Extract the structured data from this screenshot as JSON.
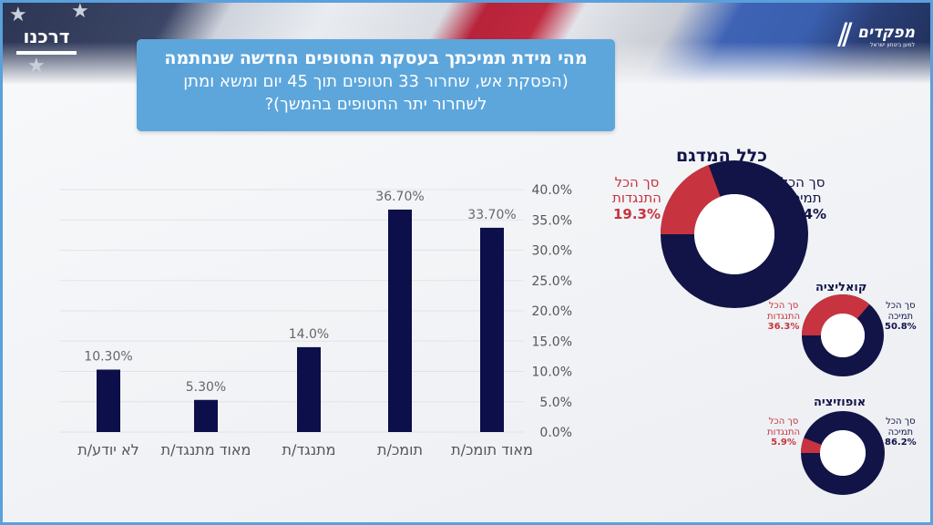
{
  "header": {
    "left_logo": "דרכנו",
    "right_logo": {
      "name": "מפקדים",
      "subtitle": "למען ביטחון ישראל"
    },
    "title_line1": "מהי מידת תמיכתך בעסקת החטופים החדשה שנחתמה",
    "title_line2": "(הפסקת אש, שחרור 33 חטופים תוך 45 יום ומשא ומתן",
    "title_line3": "לשחרור יתר החטופים בהמשך)?"
  },
  "colors": {
    "bar": "#0d0f4a",
    "support": "#121447",
    "oppose": "#c7343f",
    "title_box": "#5da6dc"
  },
  "chart_data": [
    {
      "type": "bar",
      "categories": [
        "מאוד תומכ/ת",
        "תומכ/ת",
        "מתנגד/ת",
        "מאוד מתנגד/ת",
        "לא יודע/ת"
      ],
      "values": [
        33.7,
        36.7,
        14.0,
        5.3,
        10.3
      ],
      "data_labels": [
        "33.70%",
        "36.70%",
        "14.0%",
        "5.30%",
        "10.30%"
      ],
      "y_ticks": [
        "0.0%",
        "5.0%",
        "10.0%",
        "15.0%",
        "20.0%",
        "25.0%",
        "30.0%",
        "35.0%",
        "40.0%"
      ],
      "ylim": [
        0,
        40
      ],
      "y_axis_side": "right",
      "grid": true
    },
    {
      "type": "pie",
      "title": "כלל המדגם",
      "slices": [
        {
          "label": "סך הכל תמיכה",
          "value": 70.4,
          "text": "70.4%"
        },
        {
          "label": "סך הכל התנגדות",
          "value": 19.3,
          "text": "19.3%"
        }
      ]
    },
    {
      "type": "pie",
      "title": "קואליציה",
      "slices": [
        {
          "label": "סך הכל תמיכה",
          "value": 50.8,
          "text": "50.8%"
        },
        {
          "label": "סך הכל התנגדות",
          "value": 36.3,
          "text": "36.3%"
        }
      ]
    },
    {
      "type": "pie",
      "title": "אופוזיציה",
      "slices": [
        {
          "label": "סך הכל תמיכה",
          "value": 86.2,
          "text": "86.2%"
        },
        {
          "label": "סך הכל התנגדות",
          "value": 5.9,
          "text": "5.9%"
        }
      ]
    }
  ],
  "donut_labels": {
    "support_l1": "סך הכל",
    "support_l2": "תמיכה",
    "oppose_l1": "סך הכל",
    "oppose_l2": "התנגדות"
  }
}
